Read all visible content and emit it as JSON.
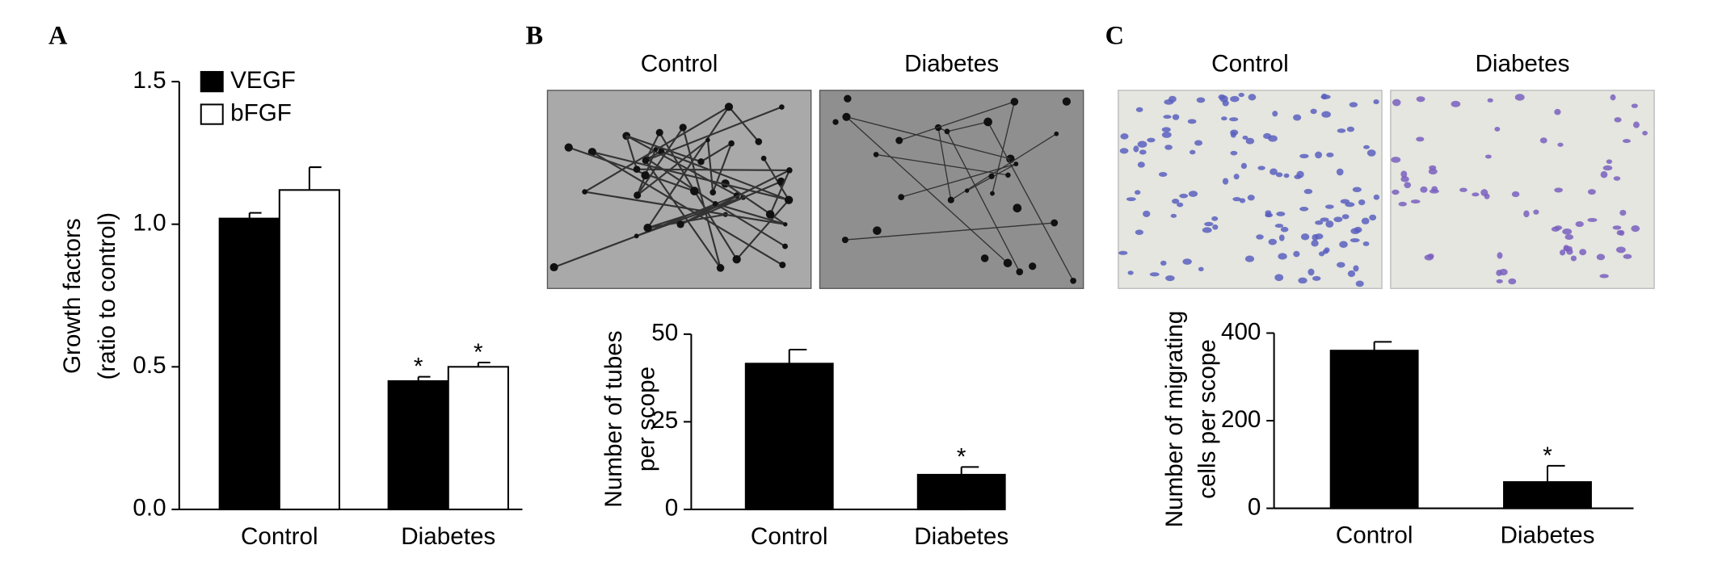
{
  "chart_data": [
    {
      "type": "bar",
      "panel_label": "A",
      "ylabel": [
        "Growth factors",
        "(ratio to control)"
      ],
      "categories": [
        "Control",
        "Diabetes"
      ],
      "series": [
        {
          "name": "VEGF",
          "color": "#000000",
          "values": [
            1.02,
            0.45
          ],
          "errors": [
            0.02,
            0.015
          ],
          "significance": [
            null,
            "*"
          ]
        },
        {
          "name": "bFGF",
          "color": "#ffffff",
          "values": [
            1.12,
            0.5
          ],
          "errors": [
            0.08,
            0.015
          ],
          "significance": [
            null,
            "*"
          ]
        }
      ],
      "ylim": [
        0,
        1.5
      ],
      "yticks": [
        {
          "value": 0,
          "label": "0.0"
        },
        0.5,
        {
          "value": 1,
          "label": "1.0"
        },
        1.5
      ],
      "legend": "upper left"
    },
    {
      "type": "bar",
      "panel_label": "B",
      "image_labels": [
        "Control",
        "Diabetes"
      ],
      "image_style": "tubes",
      "ylabel": [
        "Number of tubes",
        "per scope"
      ],
      "categories": [
        "Control",
        "Diabetes"
      ],
      "values": [
        41.6,
        9.9
      ],
      "errors": [
        4,
        2.2
      ],
      "significance": [
        null,
        "*"
      ],
      "color": "#000000",
      "ylim": [
        0,
        50
      ],
      "yticks": [
        0,
        25,
        50
      ]
    },
    {
      "type": "bar",
      "panel_label": "C",
      "image_labels": [
        "Control",
        "Diabetes"
      ],
      "image_style": "cells",
      "ylabel": [
        "Number of migrating",
        "cells per scope"
      ],
      "categories": [
        "Control",
        "Diabetes"
      ],
      "values": [
        360,
        60
      ],
      "errors": [
        20,
        37
      ],
      "significance": [
        null,
        "*"
      ],
      "color": "#000000",
      "ylim": [
        0,
        400
      ],
      "yticks": [
        0,
        200,
        400
      ]
    }
  ]
}
